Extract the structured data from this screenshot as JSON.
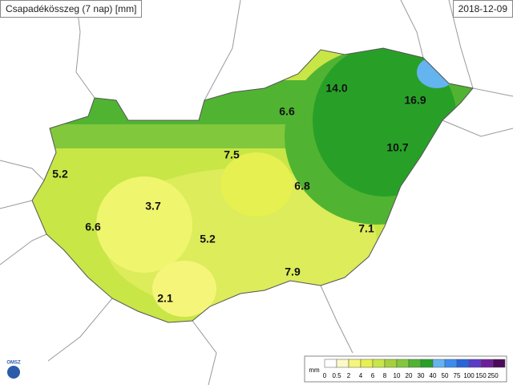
{
  "header": {
    "title": "Csapadékösszeg (7 nap) [mm]",
    "date": "2018-12-09"
  },
  "stations": [
    {
      "label": "14.0"
    },
    {
      "label": "16.9"
    },
    {
      "label": "6.6"
    },
    {
      "label": "10.7"
    },
    {
      "label": "7.5"
    },
    {
      "label": "5.2"
    },
    {
      "label": "6.8"
    },
    {
      "label": "3.7"
    },
    {
      "label": "6.6"
    },
    {
      "label": "5.2"
    },
    {
      "label": "7.1"
    },
    {
      "label": "7.9"
    },
    {
      "label": "2.1"
    }
  ],
  "legend": {
    "unit": "mm",
    "colors": [
      "#ffffff",
      "#fafac8",
      "#f5f57a",
      "#e6f050",
      "#c8e646",
      "#a5d23c",
      "#82c83c",
      "#50b432",
      "#28a028",
      "#64b4f0",
      "#3c8cf0",
      "#2864dc",
      "#5a3cc8",
      "#6e1e9b",
      "#4b0a5a"
    ],
    "labels": [
      "0",
      "0.5",
      "2",
      "4",
      "6",
      "8",
      "10",
      "20",
      "30",
      "40",
      "50",
      "75",
      "100",
      "150",
      "250"
    ]
  },
  "logo": {
    "text": "OMSZ"
  }
}
